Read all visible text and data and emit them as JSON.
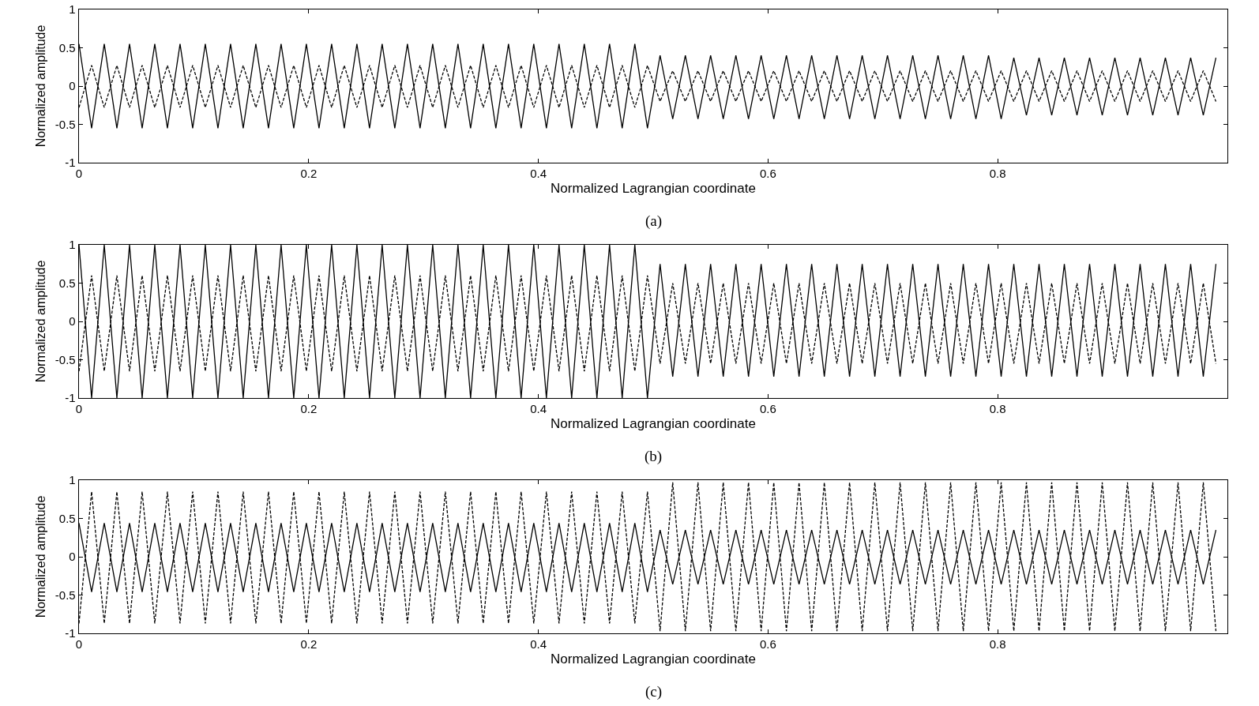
{
  "chart_data": [
    {
      "type": "line",
      "xlabel": "Normalized Lagrangian coordinate",
      "ylabel": "Normalized amplitude",
      "annotations": [
        "(a)"
      ],
      "xlim": [
        0,
        1
      ],
      "ylim": [
        -1,
        1
      ],
      "xticks": [
        0,
        0.2,
        0.4,
        0.6,
        0.8
      ],
      "yticks": [
        -1,
        -0.5,
        0,
        0.5,
        1
      ],
      "x": [
        0,
        0.011,
        0.022,
        0.033,
        0.044,
        0.055,
        0.066,
        0.077,
        0.088,
        0.099,
        0.11,
        0.121,
        0.132,
        0.143,
        0.154,
        0.165,
        0.176,
        0.187,
        0.198,
        0.209,
        0.22,
        0.231,
        0.242,
        0.253,
        0.264,
        0.275,
        0.286,
        0.297,
        0.308,
        0.319,
        0.33,
        0.341,
        0.352,
        0.363,
        0.374,
        0.385,
        0.396,
        0.407,
        0.418,
        0.429,
        0.44,
        0.451,
        0.462,
        0.473,
        0.484,
        0.495,
        0.506,
        0.517,
        0.528,
        0.539,
        0.55,
        0.561,
        0.572,
        0.583,
        0.594,
        0.605,
        0.616,
        0.627,
        0.638,
        0.649,
        0.66,
        0.671,
        0.682,
        0.693,
        0.704,
        0.715,
        0.726,
        0.737,
        0.748,
        0.759,
        0.77,
        0.781,
        0.792,
        0.803,
        0.814,
        0.825,
        0.836,
        0.847,
        0.858,
        0.869,
        0.88,
        0.891,
        0.902,
        0.913,
        0.924,
        0.935,
        0.946,
        0.957,
        0.968,
        0.979,
        0.99
      ],
      "series": [
        {
          "color": "#000000",
          "line_style": "solid",
          "values": [
            0.55,
            -0.55,
            0.55,
            -0.55,
            0.55,
            -0.55,
            0.55,
            -0.55,
            0.55,
            -0.55,
            0.55,
            -0.55,
            0.55,
            -0.55,
            0.55,
            -0.55,
            0.55,
            -0.55,
            0.55,
            -0.55,
            0.55,
            -0.55,
            0.55,
            -0.55,
            0.55,
            -0.55,
            0.55,
            -0.55,
            0.55,
            -0.55,
            0.55,
            -0.55,
            0.55,
            -0.55,
            0.55,
            -0.55,
            0.55,
            -0.55,
            0.55,
            -0.55,
            0.55,
            -0.55,
            0.55,
            -0.55,
            0.55,
            -0.55,
            0.4,
            -0.43,
            0.4,
            -0.43,
            0.4,
            -0.43,
            0.4,
            -0.43,
            0.4,
            -0.43,
            0.4,
            -0.43,
            0.4,
            -0.43,
            0.4,
            -0.43,
            0.4,
            -0.43,
            0.4,
            -0.43,
            0.4,
            -0.43,
            0.4,
            -0.43,
            0.4,
            -0.43,
            0.4,
            -0.43,
            0.37,
            -0.38,
            0.37,
            -0.38,
            0.37,
            -0.38,
            0.37,
            -0.38,
            0.37,
            -0.38,
            0.37,
            -0.38,
            0.37,
            -0.38,
            0.37,
            -0.38,
            0.37
          ]
        },
        {
          "color": "#000000",
          "line_style": "dashed",
          "values": [
            -0.28,
            0.27,
            -0.28,
            0.27,
            -0.28,
            0.27,
            -0.28,
            0.27,
            -0.28,
            0.27,
            -0.28,
            0.27,
            -0.28,
            0.27,
            -0.28,
            0.27,
            -0.28,
            0.27,
            -0.28,
            0.27,
            -0.28,
            0.27,
            -0.28,
            0.27,
            -0.28,
            0.27,
            -0.28,
            0.27,
            -0.28,
            0.27,
            -0.28,
            0.27,
            -0.28,
            0.27,
            -0.28,
            0.27,
            -0.28,
            0.27,
            -0.28,
            0.27,
            -0.28,
            0.27,
            -0.28,
            0.27,
            -0.28,
            0.27,
            -0.2,
            0.2,
            -0.2,
            0.2,
            -0.2,
            0.2,
            -0.2,
            0.2,
            -0.2,
            0.2,
            -0.2,
            0.2,
            -0.2,
            0.2,
            -0.2,
            0.2,
            -0.2,
            0.2,
            -0.2,
            0.2,
            -0.2,
            0.2,
            -0.2,
            0.2,
            -0.2,
            0.2,
            -0.2,
            0.2,
            -0.2,
            0.2,
            -0.2,
            0.2,
            -0.2,
            0.2,
            -0.2,
            0.2,
            -0.2,
            0.2,
            -0.2,
            0.2,
            -0.2,
            0.2,
            -0.2,
            0.2,
            -0.2
          ]
        }
      ]
    },
    {
      "type": "line",
      "xlabel": "Normalized Lagrangian coordinate",
      "ylabel": "Normalized amplitude",
      "annotations": [
        "(b)"
      ],
      "xlim": [
        0,
        1
      ],
      "ylim": [
        -1,
        1
      ],
      "xticks": [
        0,
        0.2,
        0.4,
        0.6,
        0.8
      ],
      "yticks": [
        -1,
        -0.5,
        0,
        0.5,
        1
      ],
      "x": [
        0,
        0.011,
        0.022,
        0.033,
        0.044,
        0.055,
        0.066,
        0.077,
        0.088,
        0.099,
        0.11,
        0.121,
        0.132,
        0.143,
        0.154,
        0.165,
        0.176,
        0.187,
        0.198,
        0.209,
        0.22,
        0.231,
        0.242,
        0.253,
        0.264,
        0.275,
        0.286,
        0.297,
        0.308,
        0.319,
        0.33,
        0.341,
        0.352,
        0.363,
        0.374,
        0.385,
        0.396,
        0.407,
        0.418,
        0.429,
        0.44,
        0.451,
        0.462,
        0.473,
        0.484,
        0.495,
        0.506,
        0.517,
        0.528,
        0.539,
        0.55,
        0.561,
        0.572,
        0.583,
        0.594,
        0.605,
        0.616,
        0.627,
        0.638,
        0.649,
        0.66,
        0.671,
        0.682,
        0.693,
        0.704,
        0.715,
        0.726,
        0.737,
        0.748,
        0.759,
        0.77,
        0.781,
        0.792,
        0.803,
        0.814,
        0.825,
        0.836,
        0.847,
        0.858,
        0.869,
        0.88,
        0.891,
        0.902,
        0.913,
        0.924,
        0.935,
        0.946,
        0.957,
        0.968,
        0.979,
        0.99
      ],
      "series": [
        {
          "color": "#000000",
          "line_style": "solid",
          "values": [
            1,
            -1,
            1,
            -1,
            1,
            -1,
            1,
            -1,
            1,
            -1,
            1,
            -1,
            1,
            -1,
            1,
            -1,
            1,
            -1,
            1,
            -1,
            1,
            -1,
            1,
            -1,
            1,
            -1,
            1,
            -1,
            1,
            -1,
            1,
            -1,
            1,
            -1,
            1,
            -1,
            1,
            -1,
            1,
            -1,
            1,
            -1,
            1,
            -1,
            1,
            -1,
            0.75,
            -0.72,
            0.75,
            -0.72,
            0.75,
            -0.72,
            0.75,
            -0.72,
            0.75,
            -0.72,
            0.75,
            -0.72,
            0.75,
            -0.72,
            0.75,
            -0.72,
            0.75,
            -0.72,
            0.75,
            -0.72,
            0.75,
            -0.72,
            0.75,
            -0.72,
            0.75,
            -0.72,
            0.75,
            -0.72,
            0.75,
            -0.72,
            0.75,
            -0.72,
            0.75,
            -0.72,
            0.75,
            -0.72,
            0.75,
            -0.72,
            0.75,
            -0.72,
            0.75,
            -0.72,
            0.75,
            -0.72,
            0.75
          ]
        },
        {
          "color": "#000000",
          "line_style": "dashed",
          "values": [
            -0.65,
            0.6,
            -0.65,
            0.6,
            -0.65,
            0.6,
            -0.65,
            0.6,
            -0.65,
            0.6,
            -0.65,
            0.6,
            -0.65,
            0.6,
            -0.65,
            0.6,
            -0.65,
            0.6,
            -0.65,
            0.6,
            -0.65,
            0.6,
            -0.65,
            0.6,
            -0.65,
            0.6,
            -0.65,
            0.6,
            -0.65,
            0.6,
            -0.65,
            0.6,
            -0.65,
            0.6,
            -0.65,
            0.6,
            -0.65,
            0.6,
            -0.65,
            0.6,
            -0.65,
            0.6,
            -0.65,
            0.6,
            -0.65,
            0.6,
            -0.55,
            0.5,
            -0.55,
            0.5,
            -0.55,
            0.5,
            -0.55,
            0.5,
            -0.55,
            0.5,
            -0.55,
            0.5,
            -0.55,
            0.5,
            -0.55,
            0.5,
            -0.55,
            0.5,
            -0.55,
            0.5,
            -0.55,
            0.5,
            -0.55,
            0.5,
            -0.55,
            0.5,
            -0.55,
            0.5,
            -0.55,
            0.5,
            -0.55,
            0.5,
            -0.55,
            0.5,
            -0.55,
            0.5,
            -0.55,
            0.5,
            -0.55,
            0.5,
            -0.55,
            0.5,
            -0.55,
            0.5,
            -0.55
          ]
        }
      ]
    },
    {
      "type": "line",
      "xlabel": "Normalized Lagrangian coordinate",
      "ylabel": "Normalized amplitude",
      "annotations": [
        "(c)"
      ],
      "xlim": [
        0,
        1
      ],
      "ylim": [
        -1,
        1
      ],
      "xticks": [
        0,
        0.2,
        0.4,
        0.6,
        0.8
      ],
      "yticks": [
        -1,
        -0.5,
        0,
        0.5,
        1
      ],
      "x": [
        0,
        0.011,
        0.022,
        0.033,
        0.044,
        0.055,
        0.066,
        0.077,
        0.088,
        0.099,
        0.11,
        0.121,
        0.132,
        0.143,
        0.154,
        0.165,
        0.176,
        0.187,
        0.198,
        0.209,
        0.22,
        0.231,
        0.242,
        0.253,
        0.264,
        0.275,
        0.286,
        0.297,
        0.308,
        0.319,
        0.33,
        0.341,
        0.352,
        0.363,
        0.374,
        0.385,
        0.396,
        0.407,
        0.418,
        0.429,
        0.44,
        0.451,
        0.462,
        0.473,
        0.484,
        0.495,
        0.506,
        0.517,
        0.528,
        0.539,
        0.55,
        0.561,
        0.572,
        0.583,
        0.594,
        0.605,
        0.616,
        0.627,
        0.638,
        0.649,
        0.66,
        0.671,
        0.682,
        0.693,
        0.704,
        0.715,
        0.726,
        0.737,
        0.748,
        0.759,
        0.77,
        0.781,
        0.792,
        0.803,
        0.814,
        0.825,
        0.836,
        0.847,
        0.858,
        0.869,
        0.88,
        0.891,
        0.902,
        0.913,
        0.924,
        0.935,
        0.946,
        0.957,
        0.968,
        0.979,
        0.99
      ],
      "series": [
        {
          "color": "#000000",
          "line_style": "solid",
          "values": [
            0.44,
            -0.46,
            0.44,
            -0.46,
            0.44,
            -0.46,
            0.44,
            -0.46,
            0.44,
            -0.46,
            0.44,
            -0.46,
            0.44,
            -0.46,
            0.44,
            -0.46,
            0.44,
            -0.46,
            0.44,
            -0.46,
            0.44,
            -0.46,
            0.44,
            -0.46,
            0.44,
            -0.46,
            0.44,
            -0.46,
            0.44,
            -0.46,
            0.44,
            -0.46,
            0.44,
            -0.46,
            0.44,
            -0.46,
            0.44,
            -0.46,
            0.44,
            -0.46,
            0.44,
            -0.46,
            0.44,
            -0.46,
            0.44,
            -0.46,
            0.35,
            -0.36,
            0.35,
            -0.36,
            0.35,
            -0.36,
            0.35,
            -0.36,
            0.35,
            -0.36,
            0.35,
            -0.36,
            0.35,
            -0.36,
            0.35,
            -0.36,
            0.35,
            -0.36,
            0.35,
            -0.36,
            0.35,
            -0.36,
            0.35,
            -0.36,
            0.35,
            -0.36,
            0.35,
            -0.36,
            0.35,
            -0.36,
            0.35,
            -0.36,
            0.35,
            -0.36,
            0.35,
            -0.36,
            0.35,
            -0.36,
            0.35,
            -0.36,
            0.35,
            -0.36,
            0.35,
            -0.36,
            0.35
          ]
        },
        {
          "color": "#000000",
          "line_style": "dashed",
          "values": [
            -0.87,
            0.85,
            -0.87,
            0.85,
            -0.87,
            0.85,
            -0.87,
            0.85,
            -0.87,
            0.85,
            -0.87,
            0.85,
            -0.87,
            0.85,
            -0.87,
            0.85,
            -0.87,
            0.85,
            -0.87,
            0.85,
            -0.87,
            0.85,
            -0.87,
            0.85,
            -0.87,
            0.85,
            -0.87,
            0.85,
            -0.87,
            0.85,
            -0.87,
            0.85,
            -0.87,
            0.85,
            -0.87,
            0.85,
            -0.87,
            0.85,
            -0.87,
            0.85,
            -0.87,
            0.85,
            -0.87,
            0.85,
            -0.87,
            0.85,
            -0.97,
            0.97,
            -0.97,
            0.97,
            -0.97,
            0.97,
            -0.97,
            0.97,
            -0.97,
            0.97,
            -0.97,
            0.97,
            -0.97,
            0.97,
            -0.97,
            0.97,
            -0.97,
            0.97,
            -0.97,
            0.97,
            -0.97,
            0.97,
            -0.97,
            0.97,
            -0.97,
            0.97,
            -0.97,
            0.97,
            -0.97,
            0.97,
            -0.97,
            0.97,
            -0.97,
            0.97,
            -0.97,
            0.97,
            -0.97,
            0.97,
            -0.97,
            0.97,
            -0.97,
            0.97,
            -0.97,
            0.97,
            -0.97
          ]
        }
      ]
    }
  ]
}
